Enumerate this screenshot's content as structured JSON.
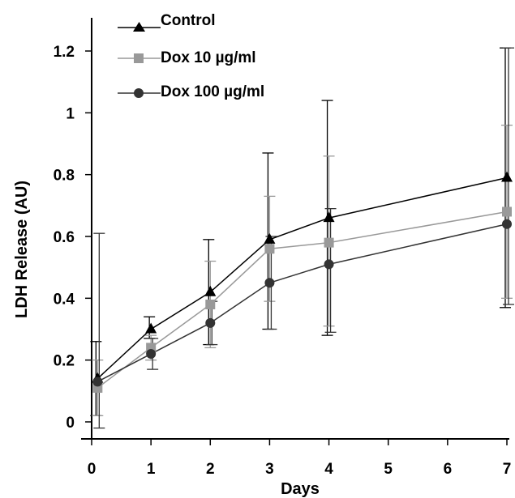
{
  "chart_data": {
    "type": "line",
    "title": "",
    "xlabel": "Days",
    "ylabel": "LDH Release (AU)",
    "x": [
      0.1,
      1,
      2,
      3,
      4,
      7
    ],
    "xticks": [
      "0",
      "1",
      "2",
      "3",
      "4",
      "5",
      "6",
      "7"
    ],
    "xlim": [
      0,
      7
    ],
    "yticks": [
      "0",
      "0.2",
      "0.4",
      "0.6",
      "0.8",
      "1",
      "1.2"
    ],
    "ylim": [
      -0.05,
      1.3
    ],
    "grid": false,
    "legend_position": "top-left",
    "series": [
      {
        "name": "Control",
        "color": "#000000",
        "marker": "triangle",
        "values": [
          0.14,
          0.3,
          0.42,
          0.59,
          0.66,
          0.79
        ],
        "error_low": [
          0.12,
          0.03,
          0.17,
          0.29,
          0.38,
          0.42
        ],
        "error_high": [
          0.12,
          0.04,
          0.17,
          0.28,
          0.38,
          0.42
        ]
      },
      {
        "name": "Dox 10 µg/ml",
        "color": "#999999",
        "marker": "square",
        "values": [
          0.11,
          0.24,
          0.38,
          0.56,
          0.58,
          0.68
        ],
        "error_low": [
          0.09,
          0.04,
          0.14,
          0.17,
          0.27,
          0.28
        ],
        "error_high": [
          0.09,
          0.04,
          0.14,
          0.17,
          0.28,
          0.28
        ]
      },
      {
        "name": "Dox 100 µg/ml",
        "color": "#333333",
        "marker": "circle",
        "values": [
          0.13,
          0.22,
          0.32,
          0.45,
          0.51,
          0.64
        ],
        "error_low": [
          0.15,
          0.05,
          0.07,
          0.15,
          0.22,
          0.26
        ],
        "error_high": [
          0.48,
          0.05,
          0.07,
          0.15,
          0.18,
          0.57
        ]
      }
    ]
  }
}
